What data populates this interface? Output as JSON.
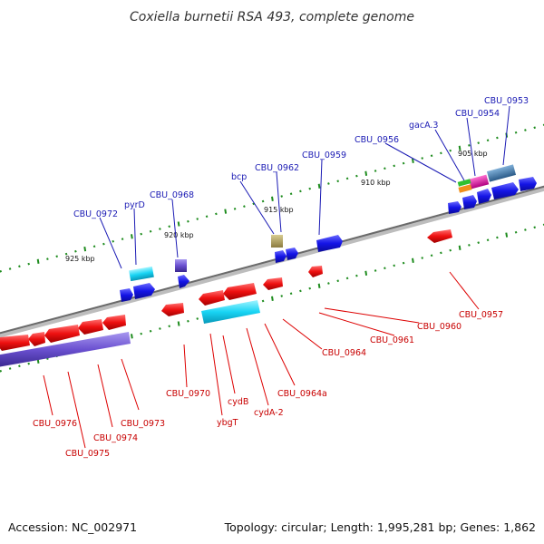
{
  "title": "Coxiella burnetii RSA 493, complete genome",
  "footer": {
    "accession": "Accession: NC_002971",
    "summary": "Topology: circular; Length: 1,995,281 bp; Genes: 1,862"
  },
  "scale_labels": [
    "905 kbp",
    "910 kbp",
    "915 kbp",
    "920 kbp",
    "925 kbp"
  ],
  "gene_labels_top": [
    "CBU_0953",
    "CBU_0954",
    "gacA.3",
    "CBU_0956",
    "CBU_0959",
    "CBU_0962",
    "bcp",
    "CBU_0968",
    "pyrD",
    "CBU_0972"
  ],
  "gene_labels_bottom": [
    "CBU_0957",
    "CBU_0960",
    "CBU_0961",
    "CBU_0964",
    "CBU_0964a",
    "cydA-2",
    "cydB",
    "ybgT",
    "CBU_0970",
    "CBU_0973",
    "CBU_0974",
    "CBU_0975",
    "CBU_0976"
  ],
  "colors": {
    "backbone": "#8c8c8c",
    "forward_gene": "#1414e6",
    "reverse_gene": "#e61414",
    "tick": "#1e8c1e",
    "label_forward": "#1a1ab4",
    "label_reverse": "#c80000",
    "cyan_feature": "#20d0f0",
    "khaki_feature": "#b0a060",
    "purple_feature": "#7050d0",
    "pink_feature": "#e020a0",
    "orange_feature": "#f0901c",
    "green_feature": "#30c030",
    "steel_feature": "#4a80b0"
  }
}
